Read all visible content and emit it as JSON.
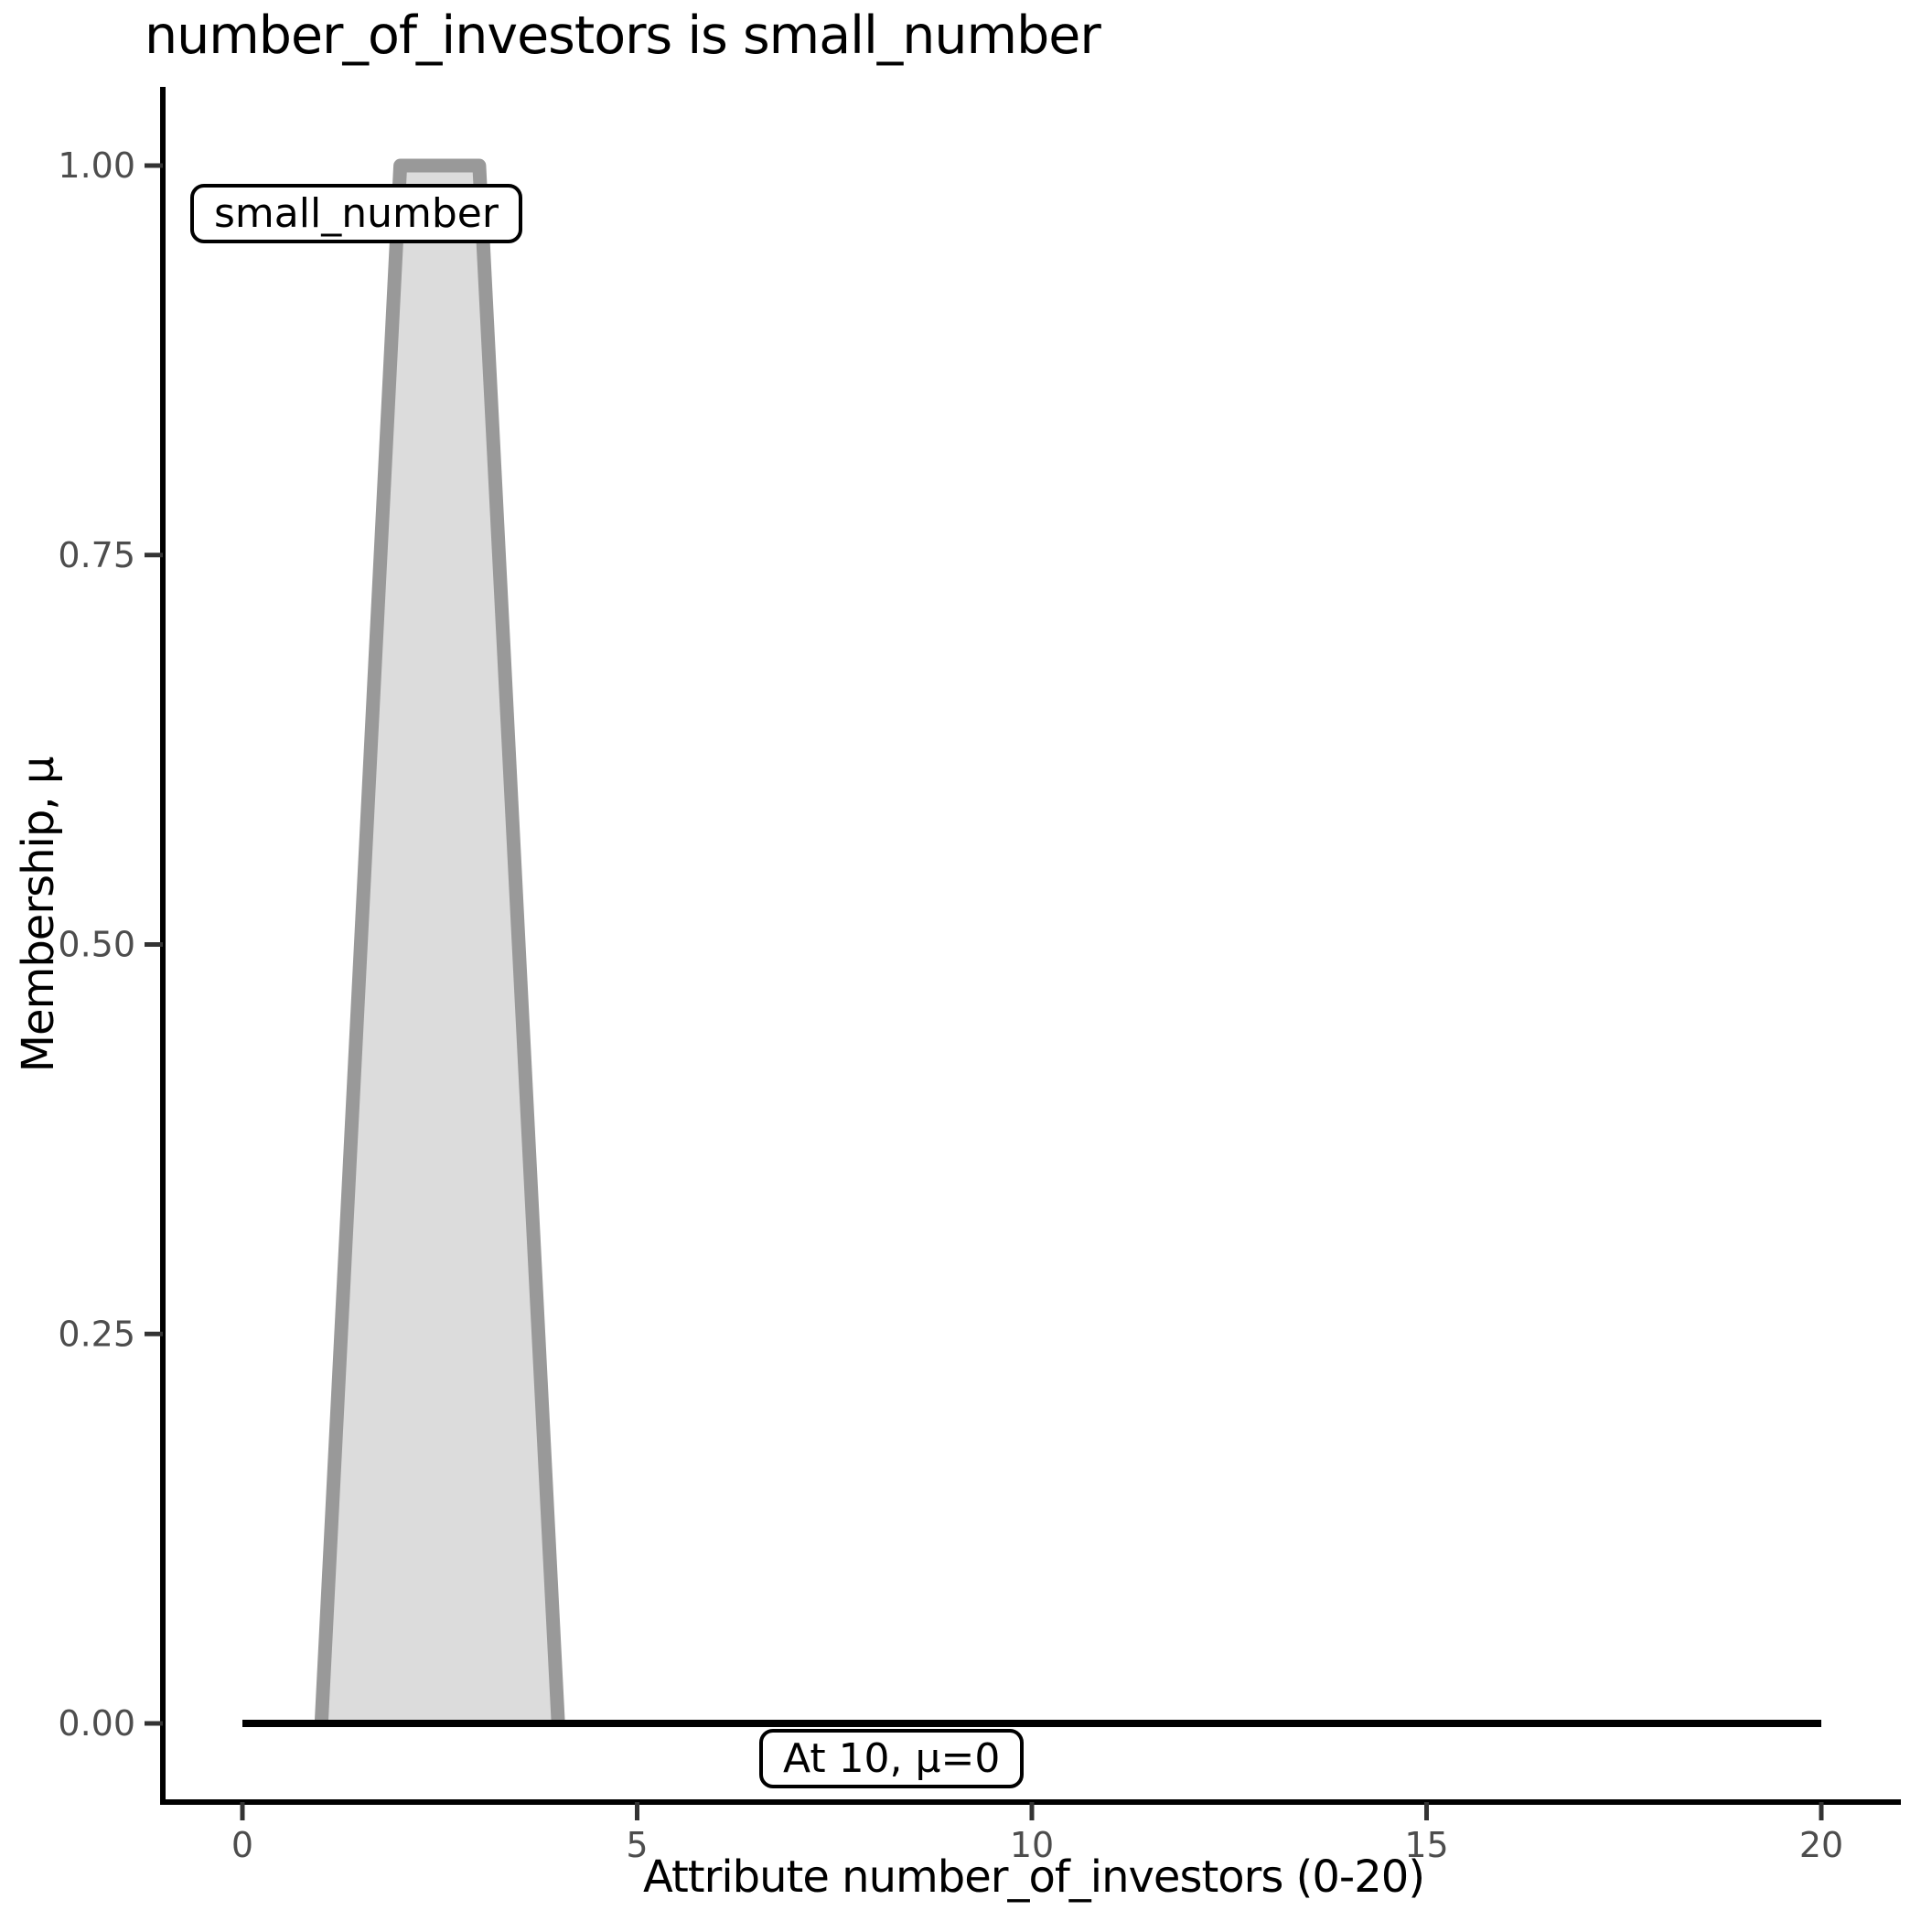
{
  "title": "number_of_investors is small_number",
  "colors": {
    "membership_fill": "#dcdcdc",
    "membership_stroke": "#999999",
    "baseline": "#000000",
    "axis_line": "#000000",
    "tick_mark": "#333333",
    "tick_label": "#4d4d4d",
    "annotation_border": "#000000",
    "annotation_bg": "#ffffff",
    "text": "#000000"
  },
  "chart_data": {
    "type": "area",
    "title": "number_of_investors is small_number",
    "xlabel": "Attribute number_of_investors (0-20)",
    "ylabel": "Membership, μ",
    "xlim": [
      0,
      20
    ],
    "ylim": [
      0,
      1
    ],
    "grid": false,
    "legend": "none",
    "x_ticks": [
      0,
      5,
      10,
      15,
      20
    ],
    "x_tick_labels": [
      "0",
      "5",
      "10",
      "15",
      "20"
    ],
    "y_ticks": [
      0,
      0.25,
      0.5,
      0.75,
      1
    ],
    "y_tick_labels": [
      "0.00",
      "0.25",
      "0.50",
      "0.75",
      "1.00"
    ],
    "series": [
      {
        "name": "small_number",
        "kind": "trapezoidal_membership_function",
        "x": [
          1,
          2,
          3,
          4
        ],
        "y": [
          0,
          1,
          1,
          0
        ],
        "fill": "#dcdcdc",
        "stroke": "#999999"
      },
      {
        "name": "zero_membership_baseline",
        "kind": "line",
        "x": [
          0,
          20
        ],
        "y": [
          0,
          0
        ],
        "stroke": "#000000"
      }
    ],
    "annotations": [
      {
        "text": "small_number",
        "x": 1.5,
        "y": 0.96
      },
      {
        "text": "At 10, μ=0",
        "x": 8.2,
        "y": -0.02
      }
    ]
  }
}
